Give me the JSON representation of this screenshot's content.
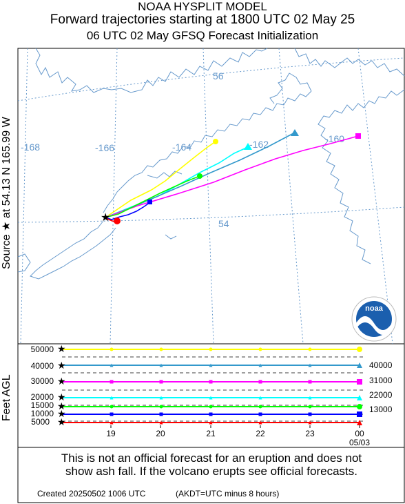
{
  "titles": {
    "line1": "NOAA HYSPLIT MODEL",
    "line2": "Forward trajectories starting at 1800 UTC 02 May 25",
    "line3": "06 UTC 02 May    GFSQ  Forecast Initialization"
  },
  "source_label": "Source ★  at   54.13 N  165.99 W",
  "logo_text": "noaa",
  "disclaimer": {
    "line1": "This is not an official forecast for an eruption and does not",
    "line2": "show ash fall. If the volcano erupts see official forecasts."
  },
  "created": "Created 20250502 1006 UTC",
  "akdt_note": "(AKDT=UTC minus 8 hours)",
  "chart_data": {
    "type": "line",
    "map": {
      "lon_labels": [
        "-168",
        "-166",
        "-164",
        "-162",
        "-160"
      ],
      "lat_labels": [
        "56",
        "54"
      ],
      "source": {
        "lat": 54.13,
        "lon": -165.99
      }
    },
    "ylabel": "Feet AGL",
    "y_ticks": [
      "50000",
      "40000",
      "30000",
      "20000",
      "15000",
      "10000",
      "5000"
    ],
    "x_ticks": [
      "19",
      "20",
      "21",
      "22",
      "23",
      "00"
    ],
    "x_date_label": "05/03",
    "right_labels": [
      "40000",
      "31000",
      "22000",
      "13000"
    ],
    "series": [
      {
        "color": "#ffff00",
        "marker": "circle",
        "start_height": 50000,
        "heights": [
          50000,
          50000,
          50000,
          50000,
          50000,
          50000,
          50000
        ]
      },
      {
        "color": "#3399cc",
        "marker": "triangle",
        "start_height": 40000,
        "heights": [
          40000,
          40000,
          40000,
          40000,
          40000,
          40000,
          40000
        ]
      },
      {
        "color": "#ff00ff",
        "marker": "square",
        "start_height": 30000,
        "heights": [
          30000,
          30000,
          30000,
          30000,
          30000,
          30000,
          30000
        ]
      },
      {
        "color": "#00ffff",
        "marker": "triangle",
        "start_height": 20000,
        "heights": [
          20000,
          20000,
          20000,
          20000,
          20000,
          20000,
          20000
        ]
      },
      {
        "color": "#00ff00",
        "marker": "circle",
        "start_height": 15000,
        "heights": [
          15000,
          15000,
          15000,
          15000,
          15000,
          15000,
          15000
        ]
      },
      {
        "color": "#0000ff",
        "marker": "square",
        "start_height": 10000,
        "heights": [
          10000,
          10000,
          10000,
          10000,
          10000,
          10000,
          10000
        ]
      },
      {
        "color": "#ff0000",
        "marker": "triangle",
        "start_height": 5000,
        "heights": [
          5000,
          5000,
          5000,
          5000,
          5000,
          5000,
          5000
        ]
      }
    ]
  }
}
